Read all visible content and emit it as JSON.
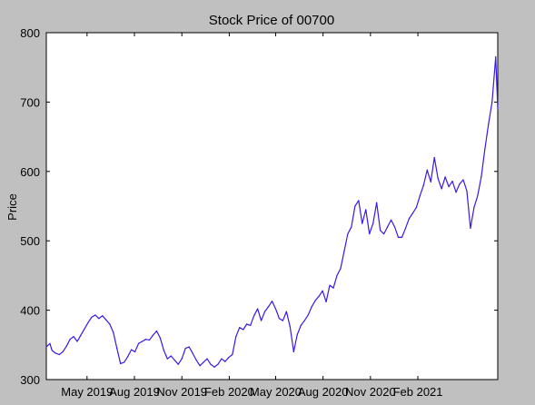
{
  "chart_data": {
    "type": "line",
    "title": "Stock Price of 00700",
    "xlabel": "",
    "ylabel": "Price",
    "ylim": [
      300,
      800
    ],
    "y_ticks": [
      300,
      400,
      500,
      600,
      700,
      800
    ],
    "x_tick_labels": [
      "May 2019",
      "Aug 2019",
      "Nov 2019",
      "Feb 2020",
      "May 2020",
      "Aug 2020",
      "Nov 2020",
      "Feb 2021"
    ],
    "grid": false,
    "legend": "none",
    "series": [
      {
        "color": "#3b17e8",
        "points": [
          [
            "2019-02-11",
            347
          ],
          [
            "2019-02-18",
            352
          ],
          [
            "2019-02-22",
            342
          ],
          [
            "2019-03-01",
            338
          ],
          [
            "2019-03-08",
            336
          ],
          [
            "2019-03-15",
            340
          ],
          [
            "2019-03-22",
            348
          ],
          [
            "2019-03-29",
            358
          ],
          [
            "2019-04-05",
            362
          ],
          [
            "2019-04-12",
            355
          ],
          [
            "2019-04-19",
            364
          ],
          [
            "2019-04-26",
            373
          ],
          [
            "2019-05-03",
            382
          ],
          [
            "2019-05-10",
            390
          ],
          [
            "2019-05-17",
            393
          ],
          [
            "2019-05-24",
            388
          ],
          [
            "2019-05-31",
            392
          ],
          [
            "2019-06-07",
            386
          ],
          [
            "2019-06-14",
            380
          ],
          [
            "2019-06-21",
            368
          ],
          [
            "2019-06-28",
            345
          ],
          [
            "2019-07-05",
            323
          ],
          [
            "2019-07-12",
            325
          ],
          [
            "2019-07-19",
            333
          ],
          [
            "2019-07-26",
            343
          ],
          [
            "2019-08-02",
            340
          ],
          [
            "2019-08-09",
            352
          ],
          [
            "2019-08-16",
            355
          ],
          [
            "2019-08-23",
            358
          ],
          [
            "2019-08-30",
            357
          ],
          [
            "2019-09-06",
            364
          ],
          [
            "2019-09-13",
            370
          ],
          [
            "2019-09-20",
            360
          ],
          [
            "2019-09-27",
            342
          ],
          [
            "2019-10-04",
            330
          ],
          [
            "2019-10-11",
            334
          ],
          [
            "2019-10-18",
            328
          ],
          [
            "2019-10-25",
            322
          ],
          [
            "2019-11-01",
            330
          ],
          [
            "2019-11-08",
            345
          ],
          [
            "2019-11-15",
            347
          ],
          [
            "2019-11-22",
            338
          ],
          [
            "2019-11-29",
            328
          ],
          [
            "2019-12-06",
            320
          ],
          [
            "2019-12-13",
            325
          ],
          [
            "2019-12-20",
            330
          ],
          [
            "2019-12-27",
            322
          ],
          [
            "2020-01-03",
            318
          ],
          [
            "2020-01-10",
            322
          ],
          [
            "2020-01-17",
            330
          ],
          [
            "2020-01-24",
            326
          ],
          [
            "2020-01-31",
            332
          ],
          [
            "2020-02-07",
            336
          ],
          [
            "2020-02-14",
            362
          ],
          [
            "2020-02-21",
            375
          ],
          [
            "2020-02-28",
            372
          ],
          [
            "2020-03-06",
            380
          ],
          [
            "2020-03-13",
            378
          ],
          [
            "2020-03-20",
            392
          ],
          [
            "2020-03-27",
            402
          ],
          [
            "2020-04-03",
            385
          ],
          [
            "2020-04-10",
            398
          ],
          [
            "2020-04-17",
            405
          ],
          [
            "2020-04-24",
            413
          ],
          [
            "2020-05-01",
            402
          ],
          [
            "2020-05-08",
            388
          ],
          [
            "2020-05-15",
            385
          ],
          [
            "2020-05-22",
            398
          ],
          [
            "2020-05-29",
            376
          ],
          [
            "2020-06-05",
            340
          ],
          [
            "2020-06-12",
            365
          ],
          [
            "2020-06-19",
            378
          ],
          [
            "2020-06-26",
            385
          ],
          [
            "2020-07-03",
            393
          ],
          [
            "2020-07-10",
            405
          ],
          [
            "2020-07-17",
            414
          ],
          [
            "2020-07-24",
            420
          ],
          [
            "2020-07-31",
            428
          ],
          [
            "2020-08-07",
            412
          ],
          [
            "2020-08-14",
            436
          ],
          [
            "2020-08-21",
            432
          ],
          [
            "2020-08-28",
            450
          ],
          [
            "2020-09-04",
            460
          ],
          [
            "2020-09-11",
            485
          ],
          [
            "2020-09-18",
            510
          ],
          [
            "2020-09-25",
            520
          ],
          [
            "2020-10-02",
            550
          ],
          [
            "2020-10-09",
            558
          ],
          [
            "2020-10-16",
            525
          ],
          [
            "2020-10-23",
            545
          ],
          [
            "2020-10-30",
            510
          ],
          [
            "2020-11-06",
            525
          ],
          [
            "2020-11-13",
            555
          ],
          [
            "2020-11-20",
            515
          ],
          [
            "2020-11-27",
            510
          ],
          [
            "2020-12-04",
            520
          ],
          [
            "2020-12-11",
            530
          ],
          [
            "2020-12-18",
            520
          ],
          [
            "2020-12-25",
            505
          ],
          [
            "2021-01-01",
            505
          ],
          [
            "2021-01-08",
            518
          ],
          [
            "2021-01-15",
            532
          ],
          [
            "2021-01-22",
            540
          ],
          [
            "2021-01-29",
            548
          ],
          [
            "2021-02-05",
            565
          ],
          [
            "2021-02-12",
            580
          ],
          [
            "2021-02-19",
            602
          ],
          [
            "2021-02-26",
            585
          ],
          [
            "2021-03-05",
            620
          ],
          [
            "2021-03-12",
            590
          ],
          [
            "2021-03-19",
            575
          ],
          [
            "2021-03-26",
            592
          ],
          [
            "2021-04-02",
            578
          ],
          [
            "2021-04-09",
            586
          ],
          [
            "2021-04-16",
            570
          ],
          [
            "2021-04-23",
            582
          ],
          [
            "2021-04-30",
            588
          ],
          [
            "2021-05-07",
            572
          ],
          [
            "2021-05-14",
            518
          ],
          [
            "2021-05-21",
            548
          ],
          [
            "2021-05-28",
            565
          ],
          [
            "2021-06-04",
            592
          ],
          [
            "2021-06-11",
            632
          ],
          [
            "2021-06-18",
            668
          ],
          [
            "2021-06-25",
            700
          ],
          [
            "2021-07-02",
            765
          ],
          [
            "2021-07-06",
            690
          ]
        ]
      }
    ]
  }
}
